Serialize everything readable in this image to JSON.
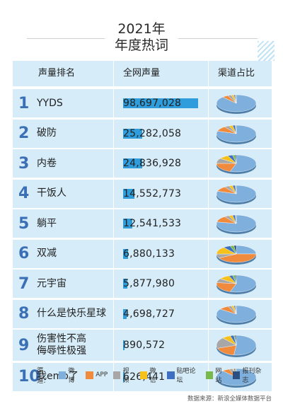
{
  "title": {
    "year": "2021年",
    "subtitle": "年度热词"
  },
  "headers": {
    "name": "声量排名",
    "volume": "全网声量",
    "share": "渠道占比"
  },
  "legend": {
    "title": "渠道:",
    "items": [
      {
        "label": "微博",
        "color": "#7fb0dd"
      },
      {
        "label": "APP",
        "color": "#f08a3c"
      },
      {
        "label": "视频",
        "color": "#a7a7a7"
      },
      {
        "label": "微信",
        "color": "#f5c11a"
      },
      {
        "label": "贴吧论坛",
        "color": "#3d6fc2"
      },
      {
        "label": "网站",
        "color": "#79b84a"
      },
      {
        "label": "报刊杂志",
        "color": "#2c4f82"
      }
    ]
  },
  "source": "数据来源：新浪全媒体数据平台",
  "chart_data": {
    "type": "bar",
    "title": "2021年 年度热词",
    "categories": [
      "YYDS",
      "破防",
      "内卷",
      "干饭人",
      "躺平",
      "双减",
      "元宇宙",
      "什么是快乐星球",
      "伤害性不高侮辱性极强",
      "我emo了"
    ],
    "ranks": [
      "1",
      "2",
      "3",
      "4",
      "5",
      "6",
      "7",
      "8",
      "9",
      "10"
    ],
    "values": [
      98697028,
      25282058,
      24836928,
      14552773,
      12541533,
      6880133,
      5877980,
      4698727,
      890572,
      626441
    ],
    "value_labels": [
      "98,697,028",
      "25,282,058",
      "24,836,928",
      "14,552,773",
      "12,541,533",
      "6,880,133",
      "5,877,980",
      "4,698,727",
      "890,572",
      "626,441"
    ],
    "channel_share": {
      "series_order": [
        "微博",
        "APP",
        "视频",
        "微信",
        "贴吧论坛",
        "网站",
        "报刊杂志"
      ],
      "rows": [
        [
          0.88,
          0.05,
          0.03,
          0.02,
          0.01,
          0.005,
          0.005
        ],
        [
          0.8,
          0.1,
          0.04,
          0.03,
          0.02,
          0.005,
          0.005
        ],
        [
          0.55,
          0.2,
          0.1,
          0.08,
          0.04,
          0.02,
          0.01
        ],
        [
          0.8,
          0.1,
          0.04,
          0.03,
          0.02,
          0.005,
          0.005
        ],
        [
          0.78,
          0.12,
          0.04,
          0.03,
          0.02,
          0.005,
          0.005
        ],
        [
          0.25,
          0.42,
          0.08,
          0.14,
          0.06,
          0.03,
          0.02
        ],
        [
          0.55,
          0.22,
          0.08,
          0.09,
          0.03,
          0.02,
          0.01
        ],
        [
          0.85,
          0.08,
          0.03,
          0.02,
          0.01,
          0.005,
          0.005
        ],
        [
          0.52,
          0.18,
          0.18,
          0.07,
          0.03,
          0.01,
          0.01
        ],
        [
          0.88,
          0.06,
          0.03,
          0.01,
          0.01,
          0.005,
          0.005
        ]
      ]
    }
  }
}
